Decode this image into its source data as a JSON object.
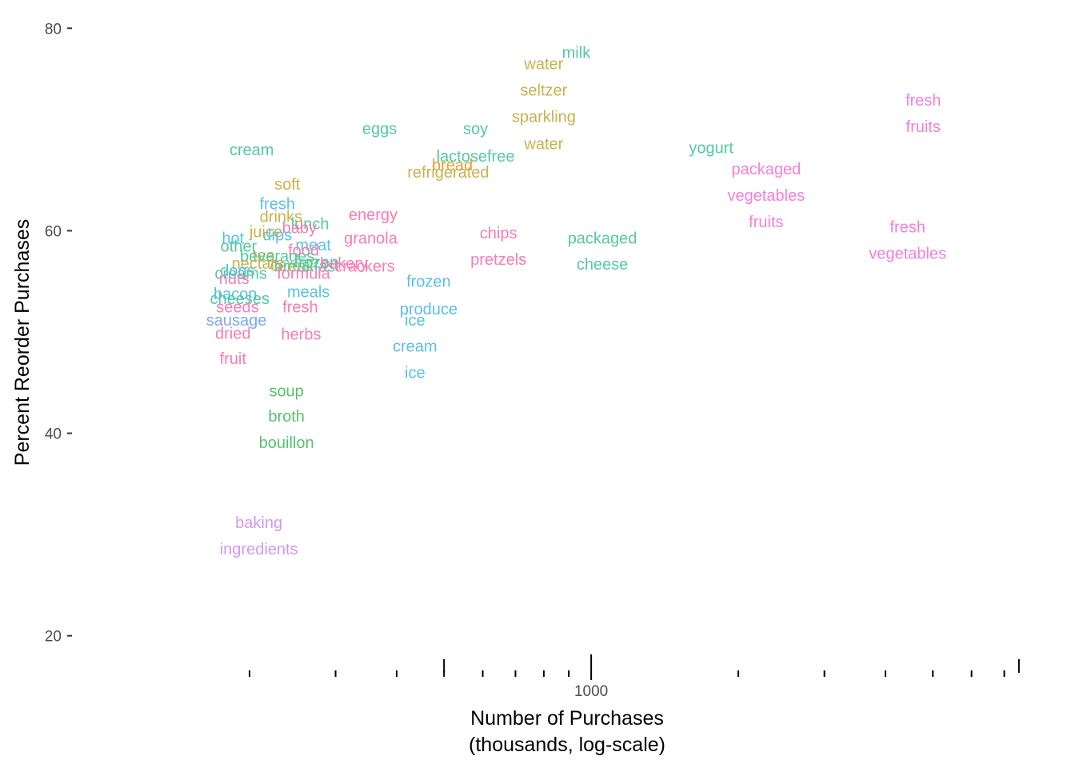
{
  "chart_data": {
    "type": "scatter",
    "title": "",
    "xlabel": [
      "Number of Purchases",
      "(thousands, log-scale)"
    ],
    "ylabel": "Percent Reorder Purchases",
    "x_scale": "log",
    "xlim": [
      100,
      8000
    ],
    "ylim": [
      18,
      82
    ],
    "grid": false,
    "legend": "none",
    "y_ticks": [
      20,
      40,
      60,
      80
    ],
    "x_tick_labels": [
      {
        "value": 1000,
        "label": "1000"
      }
    ],
    "x_minor_ticks": [
      200,
      300,
      400,
      500,
      600,
      700,
      800,
      900,
      2000,
      3000,
      4000,
      5000,
      6000,
      7000
    ],
    "x_major_ticks": [
      500,
      1000,
      7500
    ],
    "points": [
      {
        "x": 932,
        "y": 77.6,
        "text": "milk",
        "color": "#56c8a3"
      },
      {
        "x": 800,
        "y": 76.5,
        "text": "water",
        "color": "#c9b14e"
      },
      {
        "x": 800,
        "y": 73.9,
        "text": "seltzer",
        "color": "#c9b14e"
      },
      {
        "x": 800,
        "y": 71.3,
        "text": "sparkling",
        "color": "#c9b14e"
      },
      {
        "x": 800,
        "y": 68.6,
        "text": "water",
        "color": "#c9b14e"
      },
      {
        "x": 4780,
        "y": 72.9,
        "text": "fresh",
        "color": "#f281d9"
      },
      {
        "x": 4780,
        "y": 70.3,
        "text": "fruits",
        "color": "#f281d9"
      },
      {
        "x": 1760,
        "y": 68.2,
        "text": "yogurt",
        "color": "#56c8a3"
      },
      {
        "x": 2280,
        "y": 66.1,
        "text": "packaged",
        "color": "#f281d9"
      },
      {
        "x": 2280,
        "y": 63.5,
        "text": "vegetables",
        "color": "#f281d9"
      },
      {
        "x": 2280,
        "y": 60.9,
        "text": "fruits",
        "color": "#f281d9"
      },
      {
        "x": 4440,
        "y": 60.4,
        "text": "fresh",
        "color": "#f281d9"
      },
      {
        "x": 4440,
        "y": 57.8,
        "text": "vegetables",
        "color": "#f281d9"
      },
      {
        "x": 369,
        "y": 70.1,
        "text": "eggs",
        "color": "#56c8a3"
      },
      {
        "x": 580,
        "y": 70.1,
        "text": "soy",
        "color": "#56c8a3"
      },
      {
        "x": 580,
        "y": 67.4,
        "text": "lactosefree",
        "color": "#56c8a3"
      },
      {
        "x": 202,
        "y": 68.0,
        "text": "cream",
        "color": "#56c8a3"
      },
      {
        "x": 520,
        "y": 66.5,
        "text": "bread",
        "color": "#e0a23a"
      },
      {
        "x": 510,
        "y": 65.8,
        "text": "refrigerated",
        "color": "#c9b14e"
      },
      {
        "x": 1054,
        "y": 59.3,
        "text": "packaged",
        "color": "#56c8a3"
      },
      {
        "x": 1054,
        "y": 56.7,
        "text": "cheese",
        "color": "#56c8a3"
      },
      {
        "x": 646,
        "y": 59.8,
        "text": "chips",
        "color": "#f77db3"
      },
      {
        "x": 646,
        "y": 57.2,
        "text": "pretzels",
        "color": "#f77db3"
      },
      {
        "x": 239,
        "y": 64.6,
        "text": "soft",
        "color": "#c9b14e"
      },
      {
        "x": 228,
        "y": 62.7,
        "text": "fresh",
        "color": "#5bc0e3"
      },
      {
        "x": 232,
        "y": 61.4,
        "text": "drinks",
        "color": "#c9b14e"
      },
      {
        "x": 266,
        "y": 60.7,
        "text": "lunch",
        "color": "#56c8a3"
      },
      {
        "x": 253,
        "y": 60.3,
        "text": "baby",
        "color": "#f77db3"
      },
      {
        "x": 358,
        "y": 61.6,
        "text": "energy",
        "color": "#f77db3"
      },
      {
        "x": 216,
        "y": 59.9,
        "text": "juice",
        "color": "#c9b14e"
      },
      {
        "x": 228,
        "y": 59.6,
        "text": "dips",
        "color": "#5bc0e3"
      },
      {
        "x": 354,
        "y": 59.3,
        "text": "granola",
        "color": "#f77db3"
      },
      {
        "x": 185,
        "y": 59.3,
        "text": "hot",
        "color": "#5bc0e3"
      },
      {
        "x": 190,
        "y": 58.5,
        "text": "other",
        "color": "#56c8a3"
      },
      {
        "x": 270,
        "y": 58.6,
        "text": "meat",
        "color": "#5bc0e3"
      },
      {
        "x": 258,
        "y": 58.1,
        "text": "food",
        "color": "#f77db3"
      },
      {
        "x": 214,
        "y": 57.6,
        "text": "tea",
        "color": "#c9b14e"
      },
      {
        "x": 228,
        "y": 57.5,
        "text": "beverages",
        "color": "#56c8a3"
      },
      {
        "x": 208,
        "y": 56.8,
        "text": "nectars",
        "color": "#c9b14e"
      },
      {
        "x": 244,
        "y": 56.6,
        "text": "cereal",
        "color": "#c9b14e"
      },
      {
        "x": 274,
        "y": 56.9,
        "text": "frozen",
        "color": "#56c8a3"
      },
      {
        "x": 262,
        "y": 56.5,
        "text": "breakfast",
        "color": "#56c8a3"
      },
      {
        "x": 312,
        "y": 56.8,
        "text": "bakery",
        "color": "#f77db3"
      },
      {
        "x": 344,
        "y": 56.5,
        "text": "crackers",
        "color": "#f77db3"
      },
      {
        "x": 189,
        "y": 56.1,
        "text": "dogs",
        "color": "#5bc0e3"
      },
      {
        "x": 192,
        "y": 55.8,
        "text": "creams",
        "color": "#56c8a3"
      },
      {
        "x": 258,
        "y": 55.8,
        "text": "formula",
        "color": "#f77db3"
      },
      {
        "x": 186,
        "y": 55.3,
        "text": "nuts",
        "color": "#f77db3"
      },
      {
        "x": 465,
        "y": 55.0,
        "text": "frozen",
        "color": "#5bc0e3"
      },
      {
        "x": 187,
        "y": 53.8,
        "text": "bacon",
        "color": "#5bc0e3"
      },
      {
        "x": 264,
        "y": 54.0,
        "text": "meals",
        "color": "#5bc0e3"
      },
      {
        "x": 191,
        "y": 53.3,
        "text": "cheeses",
        "color": "#56c8a3"
      },
      {
        "x": 189,
        "y": 52.5,
        "text": "seeds",
        "color": "#f77db3"
      },
      {
        "x": 254,
        "y": 52.5,
        "text": "fresh",
        "color": "#f77db3"
      },
      {
        "x": 465,
        "y": 52.3,
        "text": "produce",
        "color": "#5bc0e3"
      },
      {
        "x": 436,
        "y": 51.2,
        "text": "ice",
        "color": "#5bc0e3"
      },
      {
        "x": 188,
        "y": 51.2,
        "text": "sausage",
        "color": "#7fa6f2"
      },
      {
        "x": 185,
        "y": 49.9,
        "text": "dried",
        "color": "#f77db3"
      },
      {
        "x": 255,
        "y": 49.8,
        "text": "herbs",
        "color": "#f77db3"
      },
      {
        "x": 436,
        "y": 48.6,
        "text": "cream",
        "color": "#5bc0e3"
      },
      {
        "x": 436,
        "y": 46.0,
        "text": "ice",
        "color": "#5bc0e3"
      },
      {
        "x": 185,
        "y": 47.4,
        "text": "fruit",
        "color": "#f77db3"
      },
      {
        "x": 238,
        "y": 44.2,
        "text": "soup",
        "color": "#59c26c"
      },
      {
        "x": 238,
        "y": 41.7,
        "text": "broth",
        "color": "#59c26c"
      },
      {
        "x": 238,
        "y": 39.1,
        "text": "bouillon",
        "color": "#59c26c"
      },
      {
        "x": 209,
        "y": 31.2,
        "text": "baking",
        "color": "#d299ee"
      },
      {
        "x": 209,
        "y": 28.6,
        "text": "ingredients",
        "color": "#d299ee"
      }
    ]
  }
}
